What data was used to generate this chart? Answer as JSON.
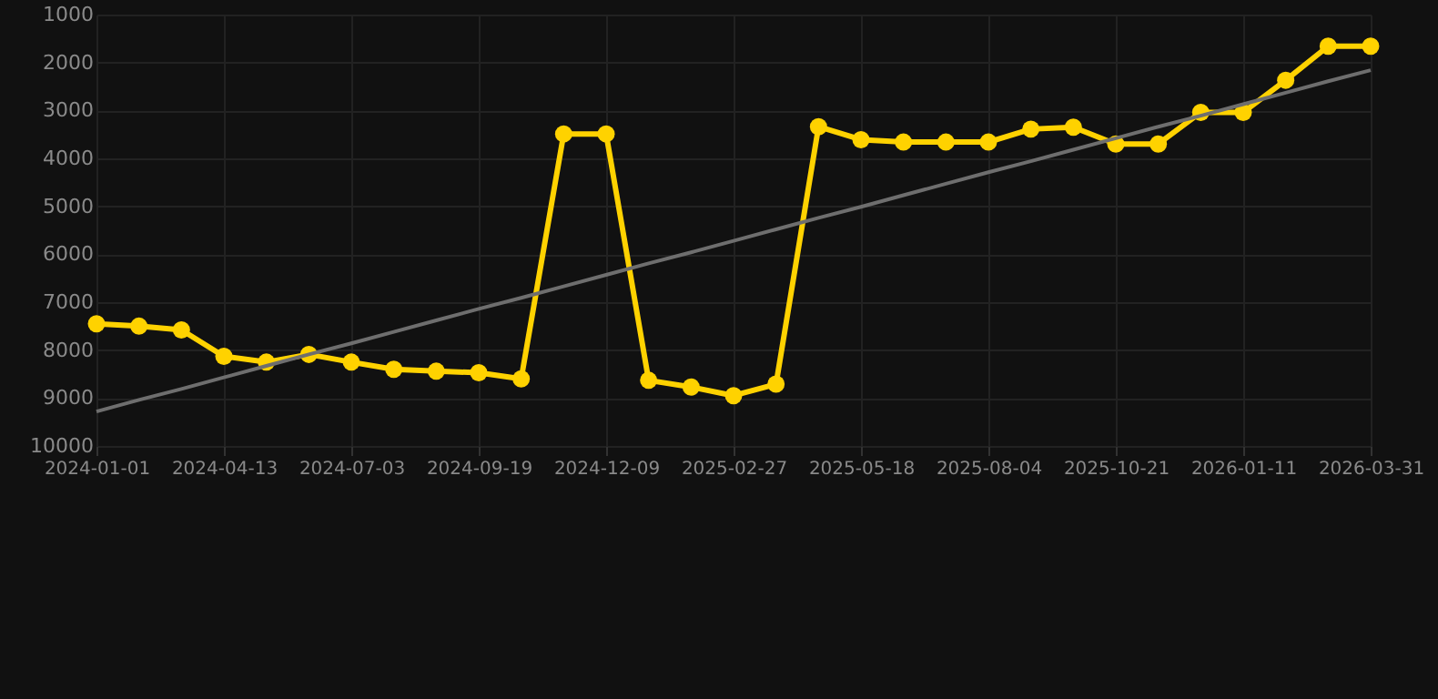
{
  "chart_data": {
    "type": "line",
    "categories": [
      "2024-01-01",
      null,
      null,
      "2024-04-13",
      null,
      null,
      "2024-07-03",
      null,
      null,
      "2024-09-19",
      null,
      null,
      "2024-12-09",
      null,
      null,
      "2025-02-27",
      null,
      null,
      "2025-05-18",
      null,
      null,
      "2025-08-04",
      null,
      null,
      "2025-10-21",
      null,
      null,
      "2026-01-11",
      null,
      null,
      "2026-03-31"
    ],
    "series": [
      {
        "color": "#ffd200",
        "values": [
          7450,
          7500,
          7580,
          8130,
          8250,
          8090,
          8250,
          8400,
          8440,
          8470,
          8600,
          3490,
          3490,
          8630,
          8770,
          8950,
          8710,
          3340,
          3610,
          3660,
          3660,
          3660,
          3390,
          3350,
          3700,
          3700,
          3040,
          3040,
          2370,
          1660,
          1660
        ],
        "marker": "circle"
      },
      {
        "type": "line",
        "color": "#6e6e6e",
        "values": [
          9280,
          9040,
          8810,
          8570,
          8330,
          8090,
          7860,
          7620,
          7380,
          7140,
          6910,
          6670,
          6430,
          6190,
          5960,
          5720,
          5480,
          5240,
          5010,
          4770,
          4530,
          4290,
          4060,
          3820,
          3580,
          3340,
          3110,
          2870,
          2630,
          2390,
          2160
        ],
        "marker": "none"
      }
    ],
    "ylim": [
      10000,
      1000
    ],
    "yticks": [
      1000,
      2000,
      3000,
      4000,
      5000,
      6000,
      7000,
      8000,
      9000,
      10000
    ],
    "grid": true
  }
}
